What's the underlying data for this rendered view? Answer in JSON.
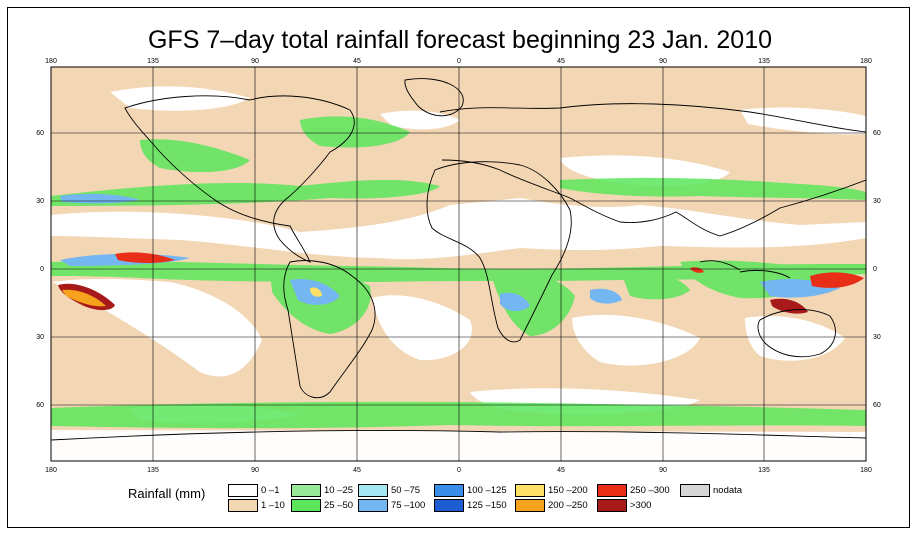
{
  "title": "GFS 7–day total rainfall forecast beginning 23 Jan. 2010",
  "map": {
    "lon_ticks_top": [
      "180",
      "135",
      "90",
      "45",
      "0",
      "45",
      "90",
      "135",
      "180"
    ],
    "lon_ticks_bottom": [
      "180",
      "135",
      "90",
      "45",
      "0",
      "45",
      "90",
      "135",
      "180"
    ],
    "lat_ticks_left": [
      "60",
      "30",
      "0",
      "30",
      "60"
    ],
    "lat_ticks_right": [
      "60",
      "30",
      "0",
      "30",
      "60"
    ]
  },
  "legend": {
    "title": "Rainfall (mm)",
    "items": [
      {
        "label": "0 –1",
        "color": "#ffffff"
      },
      {
        "label": "1 –10",
        "color": "#f3d6b4"
      },
      {
        "label": "10 –25",
        "color": "#9ae89a"
      },
      {
        "label": "25 –50",
        "color": "#5be65b"
      },
      {
        "label": "50 –75",
        "color": "#a6e6f2"
      },
      {
        "label": "75 –100",
        "color": "#74b6f2"
      },
      {
        "label": "100 –125",
        "color": "#3a8ee8"
      },
      {
        "label": "125 –150",
        "color": "#1c5ed0"
      },
      {
        "label": "150 –200",
        "color": "#ffe066"
      },
      {
        "label": "200 –250",
        "color": "#f7a21c"
      },
      {
        "label": "250 –300",
        "color": "#e82e16"
      },
      {
        "label": ">300",
        "color": "#a81a1a"
      },
      {
        "label": "nodata",
        "color": "#d6d6d6"
      }
    ]
  }
}
